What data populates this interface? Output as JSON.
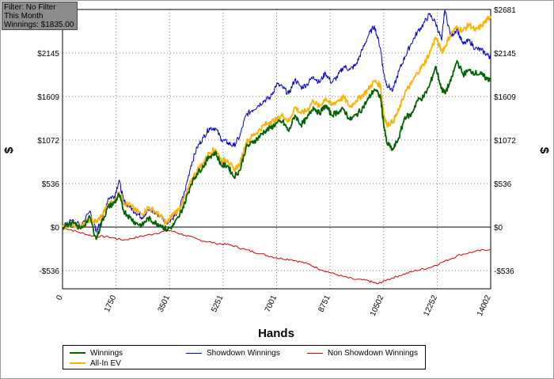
{
  "filter_box": {
    "line1": "Filter: No Filter",
    "line2": "This Month",
    "line3": "Winnings: $1835.00"
  },
  "colors": {
    "winnings": "#006400",
    "showdown": "#0000cc",
    "non_showdown": "#dd0000",
    "allin_ev": "#ffb000",
    "grid": "#7a7a7a",
    "zero_line": "#000000"
  },
  "chart_data": {
    "type": "line",
    "xlabel": "Hands",
    "ylabel": "$",
    "y2label": "$",
    "xlim": [
      0,
      14002
    ],
    "ylim": [
      -760,
      2681
    ],
    "x_ticks": [
      0,
      1750,
      3501,
      5251,
      7001,
      8751,
      10502,
      12252,
      14002
    ],
    "x_tick_labels": [
      "0",
      "1750",
      "3501",
      "5251",
      "7001",
      "8751",
      "10502",
      "12252",
      "14002"
    ],
    "y_ticks": [
      -536,
      0,
      536,
      1072,
      1609,
      2145,
      2681
    ],
    "y_tick_labels": [
      "-$536",
      "$0",
      "$536",
      "$1072",
      "$1609",
      "$2145",
      "$2681"
    ],
    "grid": true,
    "legend_position": "bottom",
    "series": [
      {
        "name": "Winnings",
        "key": "winnings",
        "x": [
          0,
          300,
          600,
          900,
          1100,
          1300,
          1500,
          1700,
          1850,
          2000,
          2200,
          2400,
          2600,
          2800,
          3000,
          3200,
          3400,
          3600,
          3800,
          4000,
          4200,
          4400,
          4600,
          4800,
          5000,
          5200,
          5400,
          5600,
          5800,
          6000,
          6200,
          6400,
          6600,
          6800,
          7000,
          7200,
          7400,
          7600,
          7800,
          8000,
          8200,
          8400,
          8600,
          8800,
          9000,
          9200,
          9400,
          9600,
          9800,
          10000,
          10200,
          10400,
          10500,
          10600,
          10800,
          11000,
          11200,
          11400,
          11600,
          11800,
          12000,
          12200,
          12400,
          12500,
          12700,
          12900,
          13100,
          13300,
          13500,
          13700,
          13900,
          14002
        ],
        "y": [
          0,
          50,
          -20,
          120,
          -150,
          80,
          250,
          300,
          400,
          200,
          120,
          50,
          20,
          110,
          60,
          30,
          -30,
          10,
          120,
          300,
          530,
          660,
          750,
          870,
          920,
          760,
          760,
          620,
          700,
          980,
          1040,
          1100,
          1180,
          1220,
          1280,
          1300,
          1180,
          1380,
          1260,
          1340,
          1480,
          1400,
          1500,
          1380,
          1420,
          1450,
          1320,
          1380,
          1460,
          1580,
          1700,
          1600,
          1280,
          1040,
          950,
          1100,
          1360,
          1380,
          1560,
          1600,
          1740,
          1980,
          1700,
          1650,
          1800,
          2050,
          1880,
          1930,
          1900,
          1880,
          1820,
          1835
        ]
      },
      {
        "name": "Showdown Winnings",
        "key": "showdown",
        "x": [
          0,
          300,
          600,
          900,
          1100,
          1300,
          1500,
          1700,
          1850,
          2000,
          2200,
          2400,
          2600,
          2800,
          3000,
          3200,
          3400,
          3600,
          3800,
          4000,
          4200,
          4400,
          4600,
          4800,
          5000,
          5200,
          5400,
          5600,
          5800,
          6000,
          6200,
          6400,
          6600,
          6800,
          7000,
          7200,
          7400,
          7600,
          7800,
          8000,
          8200,
          8400,
          8600,
          8800,
          9000,
          9200,
          9400,
          9600,
          9800,
          10000,
          10200,
          10400,
          10500,
          10600,
          10800,
          11000,
          11200,
          11400,
          11600,
          11800,
          12000,
          12200,
          12400,
          12500,
          12700,
          12900,
          13100,
          13300,
          13500,
          13700,
          13900,
          14002
        ],
        "y": [
          0,
          80,
          20,
          200,
          -60,
          120,
          360,
          380,
          580,
          320,
          250,
          180,
          120,
          210,
          180,
          140,
          60,
          110,
          210,
          440,
          760,
          980,
          1100,
          1220,
          1220,
          1080,
          1040,
          1000,
          1120,
          1380,
          1440,
          1500,
          1560,
          1600,
          1760,
          1720,
          1640,
          1820,
          1720,
          1760,
          1860,
          1780,
          1900,
          1780,
          1860,
          1980,
          1940,
          2000,
          2180,
          2360,
          2480,
          2200,
          1900,
          1760,
          1680,
          1920,
          2100,
          2260,
          2400,
          2500,
          2620,
          2520,
          2300,
          2680,
          2350,
          2440,
          2250,
          2300,
          2200,
          2180,
          2120,
          2100
        ]
      },
      {
        "name": "Non Showdown Winnings",
        "key": "non_showdown",
        "x": [
          0,
          500,
          1000,
          1500,
          2000,
          2500,
          3000,
          3500,
          4000,
          4500,
          5000,
          5500,
          6000,
          6500,
          7000,
          7500,
          8000,
          8500,
          9000,
          9500,
          10000,
          10300,
          10600,
          11000,
          11500,
          12000,
          12500,
          13000,
          13500,
          14002
        ],
        "y": [
          0,
          -60,
          -110,
          -120,
          -160,
          -120,
          -80,
          -40,
          -100,
          -160,
          -200,
          -220,
          -280,
          -330,
          -380,
          -400,
          -450,
          -530,
          -590,
          -640,
          -660,
          -700,
          -650,
          -600,
          -540,
          -500,
          -420,
          -340,
          -300,
          -270
        ]
      },
      {
        "name": "All-In EV",
        "key": "allin_ev",
        "x": [
          0,
          300,
          600,
          900,
          1100,
          1300,
          1500,
          1700,
          1850,
          2000,
          2200,
          2400,
          2600,
          2800,
          3000,
          3200,
          3400,
          3600,
          3800,
          4000,
          4200,
          4400,
          4600,
          4800,
          5000,
          5200,
          5400,
          5600,
          5800,
          6000,
          6200,
          6400,
          6600,
          6800,
          7000,
          7200,
          7400,
          7600,
          7800,
          8000,
          8200,
          8400,
          8600,
          8800,
          9000,
          9200,
          9400,
          9600,
          9800,
          10000,
          10200,
          10400,
          10500,
          10600,
          10800,
          11000,
          11200,
          11400,
          11600,
          11800,
          12000,
          12200,
          12400,
          12500,
          12700,
          12900,
          13100,
          13300,
          13500,
          13700,
          13900,
          14002
        ],
        "y": [
          0,
          40,
          0,
          100,
          60,
          150,
          280,
          320,
          430,
          300,
          270,
          200,
          160,
          240,
          200,
          140,
          40,
          150,
          220,
          360,
          560,
          700,
          790,
          920,
          960,
          820,
          830,
          700,
          780,
          1040,
          1120,
          1180,
          1260,
          1300,
          1320,
          1380,
          1300,
          1480,
          1400,
          1440,
          1560,
          1480,
          1590,
          1500,
          1560,
          1600,
          1480,
          1560,
          1620,
          1700,
          1800,
          1740,
          1400,
          1260,
          1300,
          1440,
          1660,
          1760,
          1900,
          2000,
          2140,
          2340,
          2160,
          2220,
          2380,
          2460,
          2420,
          2500,
          2420,
          2480,
          2560,
          2600
        ]
      }
    ]
  },
  "legend": {
    "winnings": "Winnings",
    "showdown": "Showdown Winnings",
    "non_showdown": "Non Showdown Winnings",
    "allin_ev": "All-In EV"
  }
}
